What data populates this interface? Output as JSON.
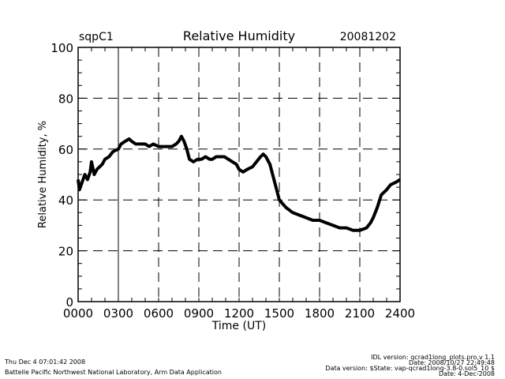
{
  "chart_data": {
    "type": "line",
    "title": "Relative Humidity",
    "site": "sqpC1",
    "date": "20081202",
    "xlabel": "Time (UT)",
    "ylabel": "Relative Humidity, %",
    "xlim": [
      0,
      24
    ],
    "ylim": [
      0,
      100
    ],
    "xticks": [
      0,
      3,
      6,
      9,
      12,
      15,
      18,
      21,
      24
    ],
    "xtick_labels": [
      "0000",
      "0300",
      "0600",
      "0900",
      "1200",
      "1500",
      "1800",
      "2100",
      "2400"
    ],
    "yticks": [
      0,
      20,
      40,
      60,
      80,
      100
    ],
    "ytick_labels": [
      "0",
      "20",
      "40",
      "60",
      "80",
      "100"
    ],
    "grid": true,
    "series": [
      {
        "name": "Relative Humidity",
        "color": "#000000",
        "x": [
          0,
          0.1,
          0.3,
          0.5,
          0.7,
          0.9,
          1.0,
          1.2,
          1.4,
          1.6,
          1.8,
          2.0,
          2.3,
          2.6,
          3.0,
          3.2,
          3.5,
          3.8,
          4.0,
          4.3,
          4.6,
          5.0,
          5.3,
          5.6,
          6.0,
          6.3,
          6.6,
          7.0,
          7.3,
          7.5,
          7.7,
          7.9,
          8.1,
          8.3,
          8.6,
          8.9,
          9.2,
          9.5,
          9.8,
          10.0,
          10.3,
          10.6,
          10.9,
          11.2,
          11.5,
          11.8,
          12.0,
          12.3,
          12.6,
          13.0,
          13.3,
          13.6,
          13.8,
          14.0,
          14.3,
          14.5,
          14.8,
          15.0,
          15.5,
          16,
          16.5,
          17,
          17.5,
          18,
          18.5,
          19,
          19.5,
          20,
          20.5,
          21,
          21.5,
          21.8,
          22,
          22.3,
          22.6,
          23,
          23.3,
          23.7,
          24
        ],
        "y": [
          48,
          44,
          47,
          50,
          48,
          51,
          55,
          50,
          52,
          53,
          54,
          56,
          57,
          59,
          60,
          62,
          63,
          64,
          63,
          62,
          62,
          62,
          61,
          62,
          61,
          61,
          61,
          61,
          62,
          63,
          65,
          63,
          60,
          56,
          55,
          56,
          56,
          57,
          56,
          56,
          57,
          57,
          57,
          56,
          55,
          54,
          52,
          51,
          52,
          53,
          55,
          57,
          58,
          57,
          54,
          50,
          44,
          40,
          37,
          35,
          34,
          33,
          32,
          32,
          31,
          30,
          29,
          29,
          28,
          28,
          29,
          31,
          33,
          37,
          42,
          44,
          46,
          47,
          48
        ]
      }
    ]
  },
  "footer": {
    "datetime": "Thu Dec  4 07:01:42 2008",
    "org": "Battelle Pacific Northwest National Laboratory, Arm Data Application",
    "idl_version": "IDL version: qcrad1long_plots.pro,v 1.1",
    "idl_date": "Date: 2008/10/27 22:49:48",
    "data_version": "Data version: $State: vap-qcrad1long-3.8-0.sol5_10 $",
    "data_date": "Date: 4-Dec-2008"
  }
}
